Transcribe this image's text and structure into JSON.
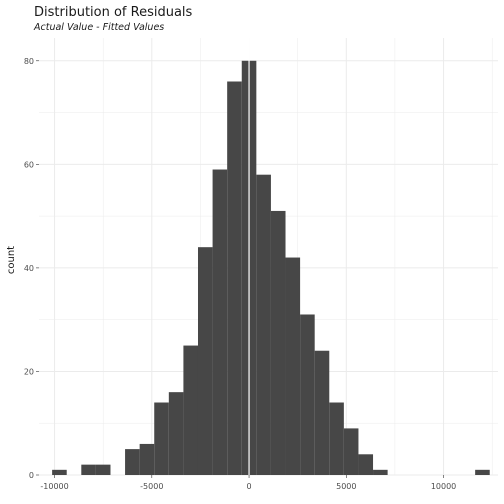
{
  "chart_data": {
    "type": "bar",
    "title": "Distribution of Residuals",
    "subtitle": "Actual Value - Fitted Values",
    "xlabel": "",
    "ylabel": "count",
    "xlim": [
      -10800,
      12800
    ],
    "ylim": [
      0,
      80
    ],
    "x_ticks": [
      -10000,
      -5000,
      0,
      5000,
      10000
    ],
    "x_tick_labels": [
      "-10000",
      "-5000",
      "0",
      "5000",
      "10000"
    ],
    "y_ticks": [
      0,
      20,
      40,
      60,
      80
    ],
    "y_tick_labels": [
      "0",
      "20",
      "40",
      "60",
      "80"
    ],
    "grid": true,
    "bin_width": 750,
    "bins": [
      {
        "start": -10125,
        "end": -9375,
        "count": 1
      },
      {
        "start": -9375,
        "end": -8625,
        "count": 0
      },
      {
        "start": -8625,
        "end": -7875,
        "count": 2
      },
      {
        "start": -7875,
        "end": -7125,
        "count": 2
      },
      {
        "start": -7125,
        "end": -6375,
        "count": 0
      },
      {
        "start": -6375,
        "end": -5625,
        "count": 5
      },
      {
        "start": -5625,
        "end": -4875,
        "count": 6
      },
      {
        "start": -4875,
        "end": -4125,
        "count": 14
      },
      {
        "start": -4125,
        "end": -3375,
        "count": 16
      },
      {
        "start": -3375,
        "end": -2625,
        "count": 25
      },
      {
        "start": -2625,
        "end": -1875,
        "count": 44
      },
      {
        "start": -1875,
        "end": -1125,
        "count": 59
      },
      {
        "start": -1125,
        "end": -375,
        "count": 76
      },
      {
        "start": -375,
        "end": 0,
        "count": 80
      },
      {
        "start": 0,
        "end": 375,
        "count": 80
      },
      {
        "start": 375,
        "end": 1125,
        "count": 58
      },
      {
        "start": 1125,
        "end": 1875,
        "count": 51
      },
      {
        "start": 1875,
        "end": 2625,
        "count": 42
      },
      {
        "start": 2625,
        "end": 3375,
        "count": 31
      },
      {
        "start": 3375,
        "end": 4125,
        "count": 24
      },
      {
        "start": 4125,
        "end": 4875,
        "count": 14
      },
      {
        "start": 4875,
        "end": 5625,
        "count": 9
      },
      {
        "start": 5625,
        "end": 6375,
        "count": 4
      },
      {
        "start": 6375,
        "end": 7125,
        "count": 1
      },
      {
        "start": 11625,
        "end": 12375,
        "count": 1
      }
    ],
    "reference_line": {
      "x": 0,
      "color": "#ffffff"
    },
    "bar_color": "#474747",
    "grid_color": "#ebebeb"
  }
}
